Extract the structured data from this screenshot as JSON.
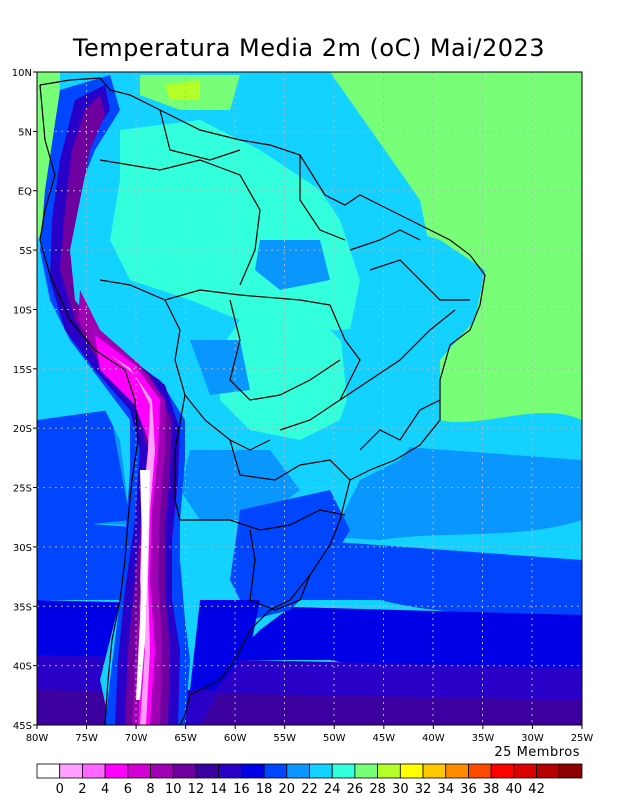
{
  "title": "Temperatura Media 2m (oC) Mai/2023",
  "members_label": "25 Membros",
  "map": {
    "lon_range": [
      -80,
      -25
    ],
    "lat_range": [
      -45,
      10
    ],
    "lon_ticks": [
      {
        "value": -80,
        "label": "80W"
      },
      {
        "value": -75,
        "label": "75W"
      },
      {
        "value": -70,
        "label": "70W"
      },
      {
        "value": -65,
        "label": "65W"
      },
      {
        "value": -60,
        "label": "60W"
      },
      {
        "value": -55,
        "label": "55W"
      },
      {
        "value": -50,
        "label": "50W"
      },
      {
        "value": -45,
        "label": "45W"
      },
      {
        "value": -40,
        "label": "40W"
      },
      {
        "value": -35,
        "label": "35W"
      },
      {
        "value": -30,
        "label": "30W"
      },
      {
        "value": -25,
        "label": "25W"
      }
    ],
    "lat_ticks": [
      {
        "value": 10,
        "label": "10N"
      },
      {
        "value": 5,
        "label": "5N"
      },
      {
        "value": 0,
        "label": "EQ"
      },
      {
        "value": -5,
        "label": "5S"
      },
      {
        "value": -10,
        "label": "10S"
      },
      {
        "value": -15,
        "label": "15S"
      },
      {
        "value": -20,
        "label": "20S"
      },
      {
        "value": -25,
        "label": "25S"
      },
      {
        "value": -30,
        "label": "30S"
      },
      {
        "value": -35,
        "label": "35S"
      },
      {
        "value": -40,
        "label": "40S"
      },
      {
        "value": -45,
        "label": "45S"
      }
    ]
  },
  "colorbar": {
    "labels": [
      "0",
      "2",
      "4",
      "6",
      "8",
      "10",
      "12",
      "14",
      "16",
      "18",
      "20",
      "22",
      "24",
      "26",
      "28",
      "30",
      "32",
      "34",
      "36",
      "38",
      "40",
      "42"
    ],
    "colors": [
      "#ffffff",
      "#ffa0ff",
      "#ff66ff",
      "#ff00ff",
      "#d200d2",
      "#a000b4",
      "#6e00a0",
      "#3c00a0",
      "#2800c8",
      "#0000e6",
      "#0046ff",
      "#0a96ff",
      "#14d2ff",
      "#32ffdc",
      "#78ff78",
      "#b4ff28",
      "#ffff00",
      "#ffc800",
      "#ff8c00",
      "#ff4b00",
      "#ff0000",
      "#dc0000",
      "#b40000",
      "#8c0000"
    ]
  }
}
